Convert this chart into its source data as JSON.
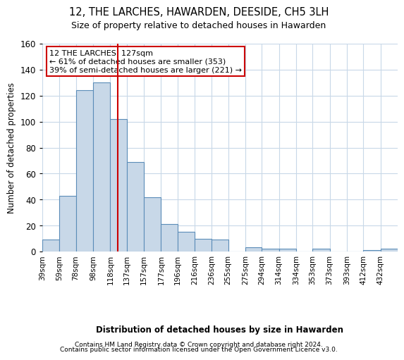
{
  "title": "12, THE LARCHES, HAWARDEN, DEESIDE, CH5 3LH",
  "subtitle": "Size of property relative to detached houses in Hawarden",
  "xlabel": "Distribution of detached houses by size in Hawarden",
  "ylabel": "Number of detached properties",
  "bar_color": "#c8d8e8",
  "bar_edge_color": "#5b8db8",
  "bin_labels": [
    "39sqm",
    "59sqm",
    "78sqm",
    "98sqm",
    "118sqm",
    "137sqm",
    "157sqm",
    "177sqm",
    "196sqm",
    "216sqm",
    "236sqm",
    "255sqm",
    "275sqm",
    "294sqm",
    "314sqm",
    "334sqm",
    "353sqm",
    "373sqm",
    "393sqm",
    "412sqm",
    "432sqm"
  ],
  "bar_heights": [
    9,
    43,
    124,
    130,
    102,
    69,
    42,
    21,
    15,
    10,
    9,
    0,
    3,
    2,
    2,
    0,
    2,
    0,
    0,
    1,
    2
  ],
  "vline_x": 127,
  "vline_color": "#cc0000",
  "bin_edges": [
    39,
    59,
    78,
    98,
    118,
    137,
    157,
    177,
    196,
    216,
    236,
    255,
    275,
    294,
    314,
    334,
    353,
    373,
    393,
    412,
    432,
    452
  ],
  "annotation_text": "12 THE LARCHES: 127sqm\n← 61% of detached houses are smaller (353)\n39% of semi-detached houses are larger (221) →",
  "annotation_box_color": "#ffffff",
  "annotation_box_edge": "#cc0000",
  "ylim": [
    0,
    160
  ],
  "yticks": [
    0,
    20,
    40,
    60,
    80,
    100,
    120,
    140,
    160
  ],
  "footer_line1": "Contains HM Land Registry data © Crown copyright and database right 2024.",
  "footer_line2": "Contains public sector information licensed under the Open Government Licence v3.0.",
  "bg_color": "#ffffff",
  "grid_color": "#c8d8e8"
}
